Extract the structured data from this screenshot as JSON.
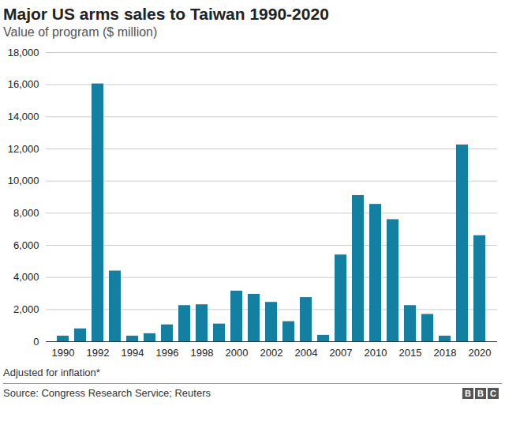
{
  "chart_data": {
    "type": "bar",
    "title": "Major US arms sales to Taiwan 1990-2020",
    "subtitle": "Value of program ($ million)",
    "note": "Adjusted for inflation*",
    "source": "Source: Congress Research Service; Reuters",
    "logo": "BBC",
    "categories": [
      "1990",
      null,
      "1992",
      null,
      "1994",
      null,
      "1996",
      null,
      "1998",
      null,
      "2000",
      null,
      "2002",
      null,
      "2004",
      null,
      "2007",
      null,
      "2010",
      null,
      "2015",
      null,
      "2018",
      null,
      "2020"
    ],
    "values": [
      350,
      800,
      16050,
      4400,
      350,
      500,
      1050,
      2250,
      2300,
      1100,
      3150,
      2950,
      2450,
      1250,
      2750,
      400,
      5400,
      9100,
      8550,
      7600,
      2250,
      1700,
      350,
      12250,
      6600
    ],
    "color": "#1380a1",
    "ylim": [
      0,
      18000
    ],
    "yticks": [
      0,
      {
        "value": 2000,
        "label": "2,000"
      },
      {
        "value": 4000,
        "label": "4,000"
      },
      {
        "value": 6000,
        "label": "6,000"
      },
      {
        "value": 8000,
        "label": "8,000"
      },
      {
        "value": 10000,
        "label": "10,000"
      },
      {
        "value": 12000,
        "label": "12,000"
      },
      {
        "value": 14000,
        "label": "14,000"
      },
      {
        "value": 16000,
        "label": "16,000"
      },
      {
        "value": 18000,
        "label": "18,000"
      }
    ],
    "grid": true
  }
}
